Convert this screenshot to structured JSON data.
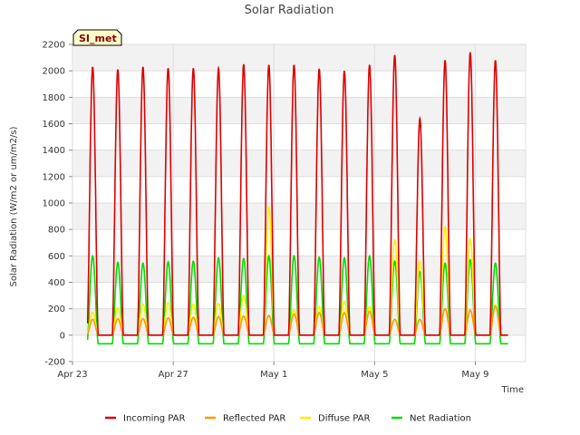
{
  "chart_data": {
    "type": "line",
    "title": "Solar Radiation",
    "xlabel": "Time",
    "ylabel": "Solar Radiation (W/m2 or um/m2/s)",
    "site_label": "SI_met",
    "x_unit": "days since Apr 23",
    "xlim": [
      0,
      18
    ],
    "ylim": [
      -200,
      2200
    ],
    "yticks": [
      -200,
      0,
      200,
      400,
      600,
      800,
      1000,
      1200,
      1400,
      1600,
      1800,
      2000,
      2200
    ],
    "xticks": [
      {
        "day": 0,
        "label": "Apr 23"
      },
      {
        "day": 4,
        "label": "Apr 27"
      },
      {
        "day": 8,
        "label": "May 1"
      },
      {
        "day": 12,
        "label": "May 5"
      },
      {
        "day": 16,
        "label": "May 9"
      }
    ],
    "day_range": [
      0.6,
      17.3
    ],
    "day_noon": 0.8,
    "series": [
      {
        "name": "Incoming PAR",
        "color": "#dd0000",
        "daily_peaks": [
          2030,
          2010,
          2030,
          2020,
          2020,
          2020,
          2050,
          2045,
          2045,
          2015,
          2000,
          2045,
          2120,
          1640,
          2080,
          2140,
          2080
        ]
      },
      {
        "name": "Reflected PAR",
        "color": "#ff9900",
        "daily_peaks": [
          120,
          125,
          125,
          130,
          135,
          140,
          145,
          150,
          160,
          170,
          170,
          180,
          120,
          120,
          200,
          190,
          220
        ]
      },
      {
        "name": "Diffuse PAR",
        "color": "#ffee00",
        "daily_peaks": [
          175,
          205,
          235,
          245,
          235,
          240,
          300,
          970,
          190,
          215,
          255,
          215,
          720,
          560,
          820,
          730,
          230
        ]
      },
      {
        "name": "Net Radiation",
        "color": "#00dd00",
        "daily_peaks": [
          600,
          550,
          545,
          555,
          560,
          585,
          580,
          600,
          600,
          590,
          585,
          600,
          560,
          480,
          545,
          570,
          545
        ],
        "night_value": -65
      }
    ],
    "legend": [
      "Incoming PAR",
      "Reflected PAR",
      "Diffuse PAR",
      "Net Radiation"
    ],
    "legend_position": "bottom-center",
    "grid": true
  }
}
